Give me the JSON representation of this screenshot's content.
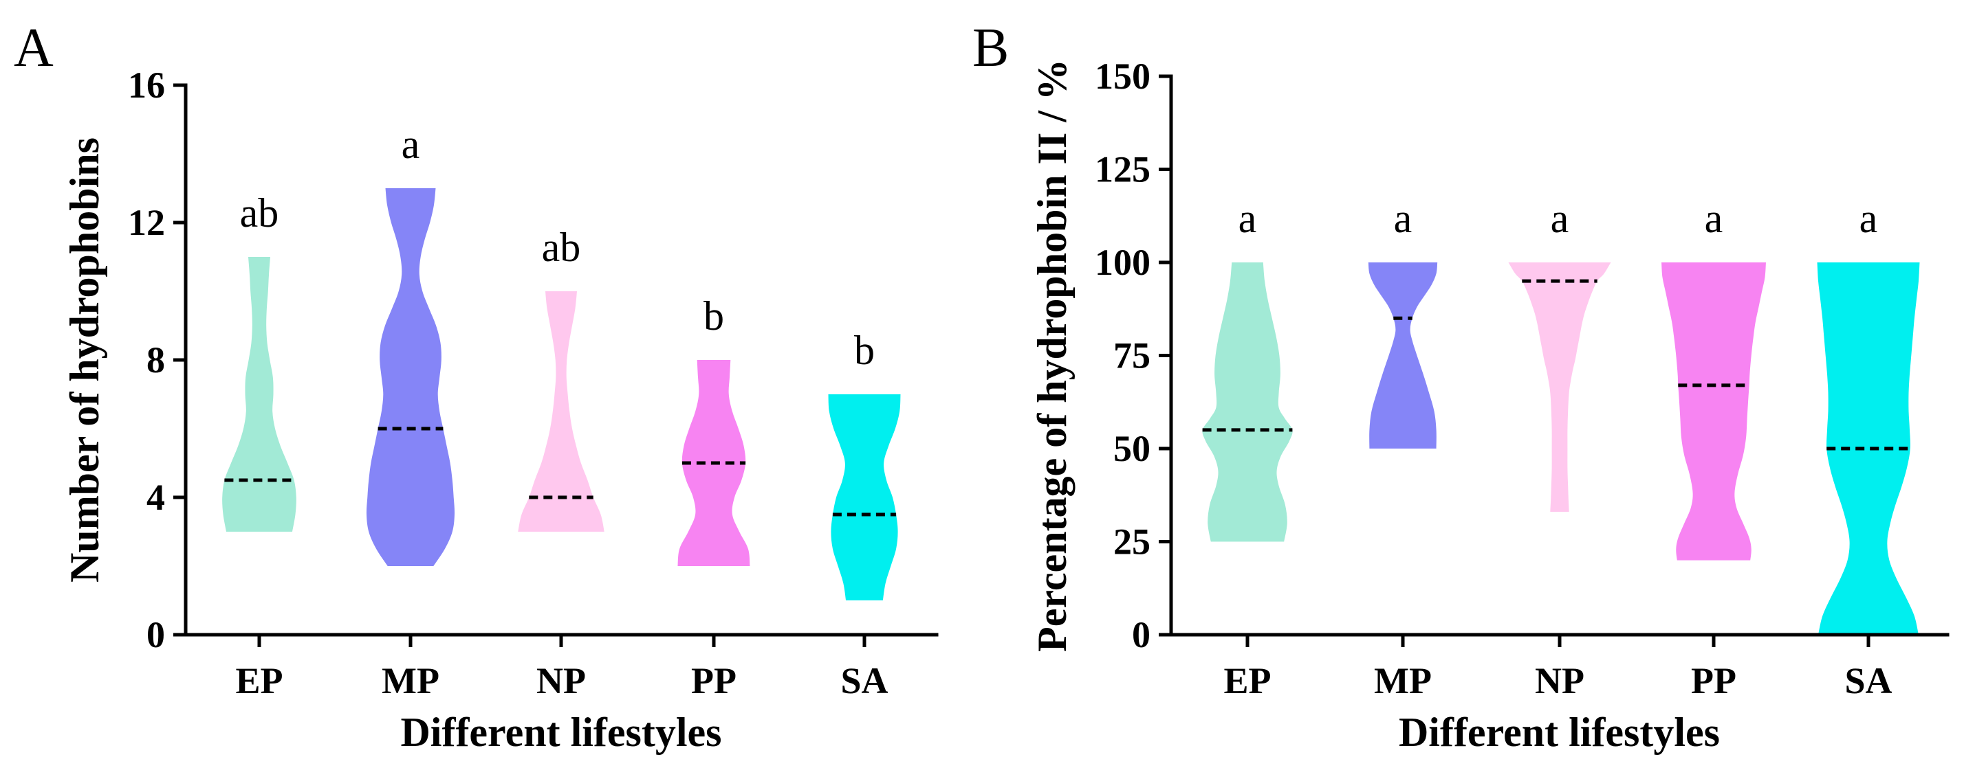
{
  "chart_data": [
    {
      "type": "violin",
      "panel_label": "A",
      "xlabel": "Different lifestyles",
      "ylabel": "Number of hydrophobins",
      "ylim": [
        0,
        16
      ],
      "yticks": [
        0,
        4,
        8,
        12,
        16
      ],
      "grid": false,
      "categories": [
        "EP",
        "MP",
        "NP",
        "PP",
        "SA"
      ],
      "series": [
        {
          "min": 3,
          "max": 11,
          "median": 4.5,
          "letter": "ab",
          "color": "#a2ead6",
          "kde": [
            [
              11,
              0.25
            ],
            [
              10.5,
              0.22
            ],
            [
              10,
              0.2
            ],
            [
              9.5,
              0.17
            ],
            [
              9,
              0.16
            ],
            [
              8.5,
              0.18
            ],
            [
              8,
              0.24
            ],
            [
              7.5,
              0.31
            ],
            [
              7,
              0.32
            ],
            [
              6.5,
              0.3
            ],
            [
              6,
              0.36
            ],
            [
              5.5,
              0.48
            ],
            [
              5,
              0.64
            ],
            [
              4.5,
              0.79
            ],
            [
              4,
              0.84
            ],
            [
              3.5,
              0.82
            ],
            [
              3,
              0.75
            ]
          ]
        },
        {
          "min": 2,
          "max": 13,
          "median": 6,
          "letter": "a",
          "color": "#8585f7",
          "kde": [
            [
              13,
              0.57
            ],
            [
              12.5,
              0.53
            ],
            [
              12,
              0.44
            ],
            [
              11.5,
              0.32
            ],
            [
              11,
              0.23
            ],
            [
              10.5,
              0.2
            ],
            [
              10,
              0.27
            ],
            [
              9.5,
              0.42
            ],
            [
              9,
              0.58
            ],
            [
              8.5,
              0.68
            ],
            [
              8,
              0.7
            ],
            [
              7.5,
              0.66
            ],
            [
              7,
              0.62
            ],
            [
              6.5,
              0.66
            ],
            [
              6,
              0.74
            ],
            [
              5.5,
              0.82
            ],
            [
              5,
              0.9
            ],
            [
              4.5,
              0.95
            ],
            [
              4,
              0.98
            ],
            [
              3.5,
              1.0
            ],
            [
              3,
              0.95
            ],
            [
              2.5,
              0.78
            ],
            [
              2,
              0.52
            ]
          ]
        },
        {
          "min": 3,
          "max": 10,
          "median": 4,
          "letter": "ab",
          "color": "#ffc8ee",
          "kde": [
            [
              10,
              0.36
            ],
            [
              9.5,
              0.32
            ],
            [
              9,
              0.25
            ],
            [
              8.5,
              0.18
            ],
            [
              8,
              0.13
            ],
            [
              7.5,
              0.12
            ],
            [
              7,
              0.15
            ],
            [
              6.5,
              0.19
            ],
            [
              6,
              0.25
            ],
            [
              5.5,
              0.34
            ],
            [
              5,
              0.45
            ],
            [
              4.5,
              0.6
            ],
            [
              4,
              0.73
            ],
            [
              3.5,
              0.9
            ],
            [
              3,
              0.98
            ]
          ]
        },
        {
          "min": 2,
          "max": 8,
          "median": 5,
          "letter": "b",
          "color": "#f784f2",
          "kde": [
            [
              8,
              0.38
            ],
            [
              7.5,
              0.36
            ],
            [
              7,
              0.34
            ],
            [
              6.5,
              0.42
            ],
            [
              6,
              0.56
            ],
            [
              5.5,
              0.68
            ],
            [
              5,
              0.72
            ],
            [
              4.5,
              0.63
            ],
            [
              4,
              0.47
            ],
            [
              3.5,
              0.42
            ],
            [
              3,
              0.58
            ],
            [
              2.5,
              0.78
            ],
            [
              2,
              0.82
            ]
          ]
        },
        {
          "min": 1,
          "max": 7,
          "median": 3.5,
          "letter": "b",
          "color": "#00efef",
          "kde": [
            [
              7,
              0.82
            ],
            [
              6.5,
              0.8
            ],
            [
              6,
              0.7
            ],
            [
              5.5,
              0.55
            ],
            [
              5,
              0.44
            ],
            [
              4.5,
              0.5
            ],
            [
              4,
              0.64
            ],
            [
              3.5,
              0.72
            ],
            [
              3,
              0.76
            ],
            [
              2.5,
              0.72
            ],
            [
              2,
              0.6
            ],
            [
              1.5,
              0.48
            ],
            [
              1,
              0.42
            ]
          ]
        }
      ]
    },
    {
      "type": "violin",
      "panel_label": "B",
      "xlabel": "Different lifestyles",
      "ylabel": "Percentage of hydrophobin II / %",
      "ylim": [
        0,
        150
      ],
      "yticks": [
        0,
        25,
        50,
        75,
        100,
        125,
        150
      ],
      "grid": false,
      "categories": [
        "EP",
        "MP",
        "NP",
        "PP",
        "SA"
      ],
      "series": [
        {
          "min": 25,
          "max": 100,
          "median": 55,
          "letter": "a",
          "color": "#a2ead6",
          "kde": [
            [
              100,
              0.3
            ],
            [
              95,
              0.33
            ],
            [
              90,
              0.39
            ],
            [
              85,
              0.47
            ],
            [
              80,
              0.55
            ],
            [
              75,
              0.61
            ],
            [
              70,
              0.63
            ],
            [
              65,
              0.6
            ],
            [
              61,
              0.6
            ],
            [
              58,
              0.72
            ],
            [
              55,
              0.86
            ],
            [
              52,
              0.8
            ],
            [
              48,
              0.64
            ],
            [
              44,
              0.56
            ],
            [
              40,
              0.6
            ],
            [
              35,
              0.72
            ],
            [
              30,
              0.76
            ],
            [
              25,
              0.7
            ]
          ]
        },
        {
          "min": 50,
          "max": 100,
          "median": 85,
          "letter": "a",
          "color": "#8585f7",
          "kde": [
            [
              100,
              0.66
            ],
            [
              97,
              0.64
            ],
            [
              94,
              0.55
            ],
            [
              91,
              0.41
            ],
            [
              88,
              0.27
            ],
            [
              85,
              0.18
            ],
            [
              82,
              0.14
            ],
            [
              79,
              0.18
            ],
            [
              75,
              0.27
            ],
            [
              70,
              0.39
            ],
            [
              65,
              0.5
            ],
            [
              60,
              0.6
            ],
            [
              55,
              0.64
            ],
            [
              50,
              0.64
            ]
          ]
        },
        {
          "min": 33,
          "max": 100,
          "median": 95,
          "letter": "a",
          "color": "#ffc8ee",
          "kde": [
            [
              100,
              0.98
            ],
            [
              97,
              0.85
            ],
            [
              95,
              0.72
            ],
            [
              92,
              0.62
            ],
            [
              89,
              0.54
            ],
            [
              86,
              0.47
            ],
            [
              83,
              0.42
            ],
            [
              80,
              0.38
            ],
            [
              77,
              0.34
            ],
            [
              74,
              0.3
            ],
            [
              71,
              0.25
            ],
            [
              68,
              0.21
            ],
            [
              65,
              0.18
            ],
            [
              60,
              0.16
            ],
            [
              55,
              0.15
            ],
            [
              50,
              0.15
            ],
            [
              45,
              0.15
            ],
            [
              40,
              0.16
            ],
            [
              36,
              0.17
            ],
            [
              33,
              0.18
            ]
          ]
        },
        {
          "min": 20,
          "max": 100,
          "median": 67,
          "letter": "a",
          "color": "#f784f2",
          "kde": [
            [
              100,
              1.0
            ],
            [
              96,
              0.98
            ],
            [
              92,
              0.92
            ],
            [
              88,
              0.86
            ],
            [
              84,
              0.8
            ],
            [
              80,
              0.76
            ],
            [
              75,
              0.72
            ],
            [
              70,
              0.69
            ],
            [
              67,
              0.68
            ],
            [
              63,
              0.66
            ],
            [
              58,
              0.64
            ],
            [
              53,
              0.62
            ],
            [
              48,
              0.56
            ],
            [
              43,
              0.46
            ],
            [
              38,
              0.4
            ],
            [
              34,
              0.44
            ],
            [
              30,
              0.56
            ],
            [
              26,
              0.68
            ],
            [
              23,
              0.72
            ],
            [
              20,
              0.7
            ]
          ]
        },
        {
          "min": 0,
          "max": 100,
          "median": 50,
          "letter": "a",
          "color": "#00efef",
          "kde": [
            [
              100,
              0.98
            ],
            [
              95,
              0.96
            ],
            [
              90,
              0.92
            ],
            [
              85,
              0.88
            ],
            [
              80,
              0.85
            ],
            [
              75,
              0.82
            ],
            [
              70,
              0.79
            ],
            [
              65,
              0.77
            ],
            [
              60,
              0.77
            ],
            [
              55,
              0.79
            ],
            [
              50,
              0.8
            ],
            [
              45,
              0.74
            ],
            [
              40,
              0.64
            ],
            [
              35,
              0.52
            ],
            [
              30,
              0.42
            ],
            [
              25,
              0.36
            ],
            [
              20,
              0.4
            ],
            [
              15,
              0.54
            ],
            [
              10,
              0.72
            ],
            [
              5,
              0.88
            ],
            [
              0,
              0.96
            ]
          ]
        }
      ]
    }
  ]
}
